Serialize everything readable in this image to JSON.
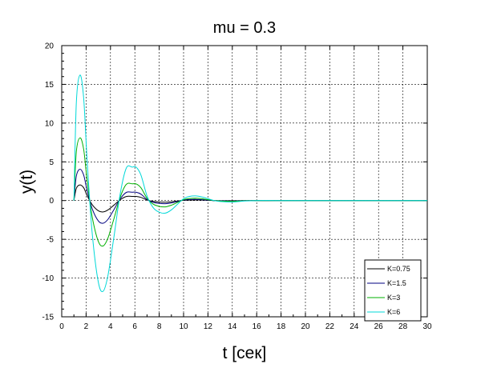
{
  "chart_data": {
    "type": "line",
    "title": "mu = 0.3",
    "xlabel": "t [сек]",
    "ylabel": "y(t)",
    "xlim": [
      0,
      30
    ],
    "ylim": [
      -15,
      20
    ],
    "xticks": [
      0,
      2,
      4,
      6,
      8,
      10,
      12,
      14,
      16,
      18,
      20,
      22,
      24,
      26,
      28,
      30
    ],
    "yticks": [
      -15,
      -10,
      -5,
      0,
      5,
      10,
      15,
      20
    ],
    "grid": true,
    "legend_position": "bottom-right",
    "series": [
      {
        "name": "K=0.75",
        "color": "#000000",
        "gain": 0.75
      },
      {
        "name": "K=1.5",
        "color": "#000080",
        "gain": 1.5
      },
      {
        "name": "K=3",
        "color": "#00b000",
        "gain": 3
      },
      {
        "name": "K=6",
        "color": "#00d8d8",
        "gain": 6
      }
    ],
    "x": [
      1.0,
      1.2,
      1.5,
      1.8,
      2.1,
      2.5,
      3.0,
      3.4,
      3.8,
      4.3,
      4.8,
      5.3,
      5.8,
      6.1,
      6.5,
      7.0,
      7.5,
      8.0,
      8.5,
      9.0,
      9.5,
      10.0,
      10.5,
      11.0,
      11.5,
      12.0,
      12.5,
      13.0,
      14.0,
      15.0,
      16.0,
      17.5,
      19.0,
      30.0
    ],
    "base_response": [
      0.0,
      2.1,
      2.7,
      2.2,
      0.8,
      -0.7,
      -1.75,
      -1.95,
      -1.6,
      -0.75,
      0.15,
      0.7,
      0.72,
      0.72,
      0.55,
      0.1,
      -0.15,
      -0.25,
      -0.27,
      -0.2,
      -0.08,
      0.04,
      0.09,
      0.1,
      0.08,
      0.04,
      0.0,
      -0.02,
      -0.03,
      -0.01,
      0.0,
      0.0,
      0.0,
      0.0
    ]
  }
}
